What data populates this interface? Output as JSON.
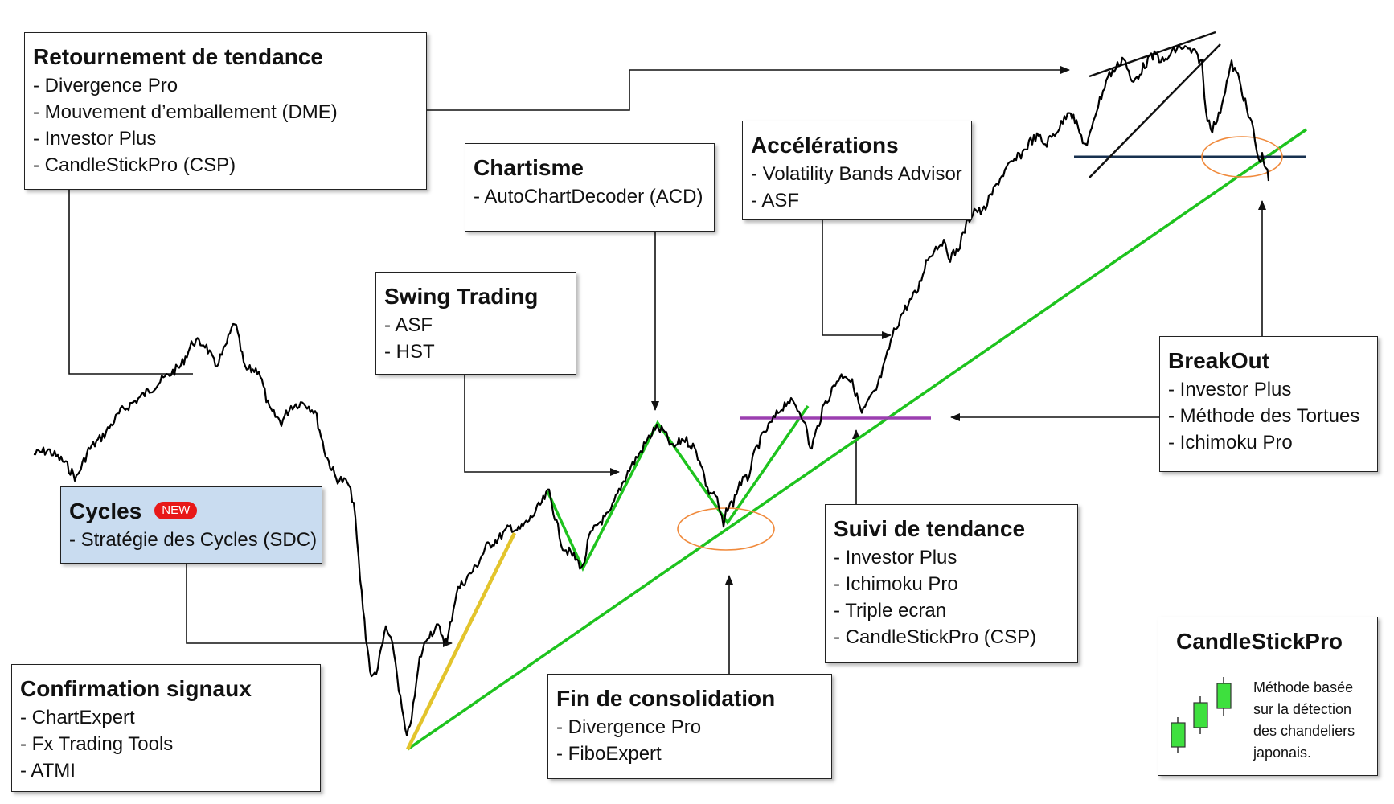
{
  "boxes": {
    "retournement": {
      "title": "Retournement de tendance",
      "items": [
        "- Divergence Pro",
        "- Mouvement d’emballement (DME)",
        "- Investor Plus",
        "- CandleStickPro (CSP)"
      ]
    },
    "chartisme": {
      "title": "Chartisme",
      "items": [
        "- AutoChartDecoder (ACD)"
      ]
    },
    "accelerations": {
      "title": "Accélérations",
      "items": [
        "- Volatility Bands Advisor",
        "- ASF"
      ]
    },
    "swing": {
      "title": "Swing Trading",
      "items": [
        "- ASF",
        "- HST"
      ]
    },
    "breakout": {
      "title": "BreakOut",
      "items": [
        "- Investor Plus",
        "- Méthode des Tortues",
        "- Ichimoku Pro"
      ]
    },
    "cycles": {
      "title": "Cycles",
      "badge": "NEW",
      "items": [
        "- Stratégie des Cycles (SDC)"
      ]
    },
    "suivi": {
      "title": "Suivi de tendance",
      "items": [
        "- Investor Plus",
        "- Ichimoku Pro",
        "- Triple ecran",
        "- CandleStickPro (CSP)"
      ]
    },
    "confirmation": {
      "title": "Confirmation signaux",
      "items": [
        "- ChartExpert",
        "- Fx Trading Tools",
        "- ATMI"
      ]
    },
    "fin": {
      "title": "Fin de consolidation",
      "items": [
        "- Divergence Pro",
        "- FiboExpert"
      ]
    },
    "candlestick": {
      "title": "CandleStickPro",
      "items": [
        "Méthode basée",
        "sur la détection",
        "des chandeliers",
        "japonais."
      ]
    }
  },
  "colors": {
    "price_line": "#000000",
    "trend_line": "#1ec31e",
    "yellow_line": "#e3c42c",
    "support_line": "#9b3fb0",
    "top_support": "#17304f",
    "ellipse": "#f08a3c",
    "box_blue": "#c9dcf0",
    "badge_red": "#e81818",
    "candle_green": "#3ee03e"
  }
}
